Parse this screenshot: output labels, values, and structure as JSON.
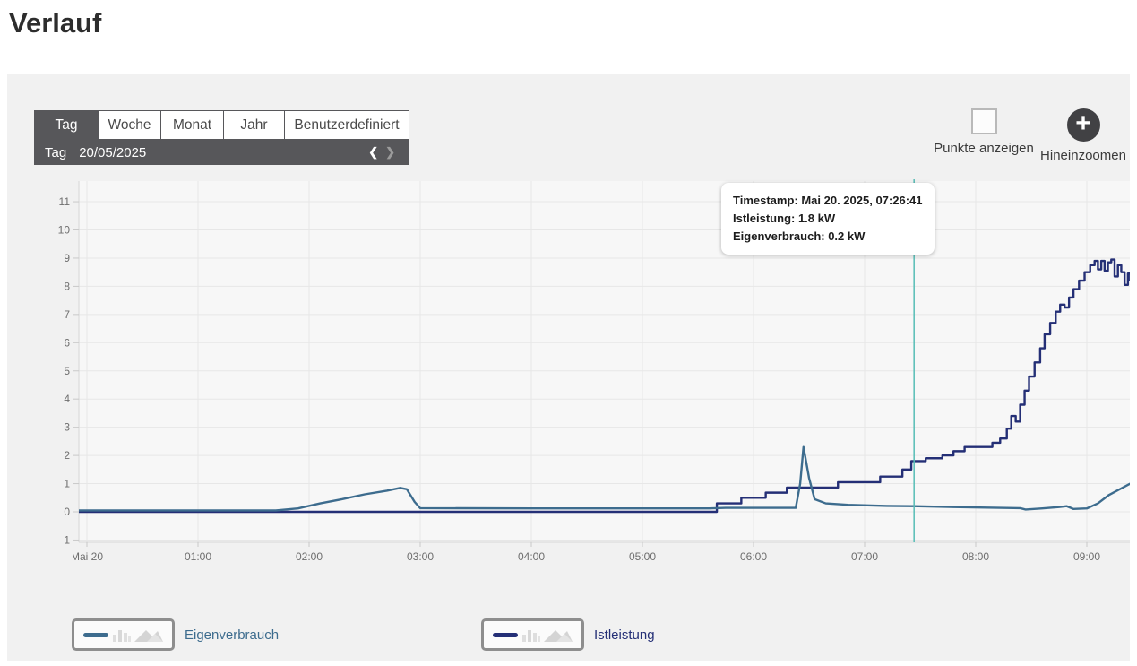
{
  "page": {
    "title": "Verlauf"
  },
  "toolbar": {
    "tabs": [
      {
        "label": "Tag",
        "active": true
      },
      {
        "label": "Woche",
        "active": false
      },
      {
        "label": "Monat",
        "active": false
      },
      {
        "label": "Jahr",
        "active": false
      },
      {
        "label": "Benutzerdefiniert",
        "active": false
      }
    ],
    "date_bar": {
      "mode_label": "Tag",
      "date": "20/05/2025",
      "prev_icon": "❮",
      "next_icon": "❯"
    }
  },
  "controls": {
    "show_points_label": "Punkte anzeigen",
    "zoom_in_label": "Hineinzoomen",
    "zoom_icon": "+",
    "checkbox_checked": false
  },
  "tooltip": {
    "lines": [
      "Timestamp: Mai 20. 2025, 07:26:41",
      "Istleistung: 1.8 kW",
      "Eigenverbrauch: 0.2 kW"
    ]
  },
  "legend": [
    {
      "label": "Eigenverbrauch",
      "color": "#3d6c8e"
    },
    {
      "label": "Istleistung",
      "color": "#242f76"
    }
  ],
  "colors": {
    "ui_dark_gray": "#57575a",
    "panel_bg": "#f1f1f1",
    "plot_bg": "#f7f7f7",
    "grid": "#e7e7e7",
    "axis": "#d6d6d6",
    "crosshair": "#56bdb6"
  },
  "chart_data": {
    "type": "line",
    "title": "",
    "xlabel": "",
    "ylabel": "",
    "x_unit": "hours since 00:00 of Mai 20 2025",
    "xlim": [
      -0.073,
      9.39
    ],
    "ylim": [
      -1.1,
      11.7
    ],
    "grid": true,
    "legend_position": "bottom",
    "y_ticks": [
      -1,
      0,
      1,
      2,
      3,
      4,
      5,
      6,
      7,
      8,
      9,
      10,
      11
    ],
    "x_ticks": [
      {
        "x": 0,
        "label": "Mai 20"
      },
      {
        "x": 1,
        "label": "01:00"
      },
      {
        "x": 2,
        "label": "02:00"
      },
      {
        "x": 3,
        "label": "03:00"
      },
      {
        "x": 4,
        "label": "04:00"
      },
      {
        "x": 5,
        "label": "05:00"
      },
      {
        "x": 6,
        "label": "06:00"
      },
      {
        "x": 7,
        "label": "07:00"
      },
      {
        "x": 8,
        "label": "08:00"
      },
      {
        "x": 9,
        "label": "09:00"
      }
    ],
    "crosshair": {
      "x": 7.445,
      "color": "#56bdb6"
    },
    "series": [
      {
        "name": "Istleistung",
        "color": "#242f76",
        "unit": "kW",
        "step": true,
        "points": [
          [
            -0.073,
            0
          ],
          [
            5.5,
            0
          ],
          [
            5.67,
            0.3
          ],
          [
            5.89,
            0.5
          ],
          [
            6.11,
            0.68
          ],
          [
            6.3,
            0.86
          ],
          [
            6.76,
            1.05
          ],
          [
            7.14,
            1.25
          ],
          [
            7.34,
            1.5
          ],
          [
            7.42,
            1.8
          ],
          [
            7.55,
            1.9
          ],
          [
            7.7,
            2.0
          ],
          [
            7.8,
            2.15
          ],
          [
            7.9,
            2.3
          ],
          [
            8.15,
            2.45
          ],
          [
            8.22,
            2.6
          ],
          [
            8.28,
            2.95
          ],
          [
            8.32,
            3.4
          ],
          [
            8.36,
            3.2
          ],
          [
            8.4,
            3.8
          ],
          [
            8.44,
            4.3
          ],
          [
            8.48,
            4.8
          ],
          [
            8.53,
            5.3
          ],
          [
            8.58,
            5.8
          ],
          [
            8.62,
            6.3
          ],
          [
            8.67,
            6.7
          ],
          [
            8.72,
            7.1
          ],
          [
            8.76,
            7.35
          ],
          [
            8.8,
            7.25
          ],
          [
            8.84,
            7.6
          ],
          [
            8.88,
            7.9
          ],
          [
            8.93,
            8.2
          ],
          [
            8.98,
            8.5
          ],
          [
            9.03,
            8.75
          ],
          [
            9.07,
            8.9
          ],
          [
            9.1,
            8.6
          ],
          [
            9.13,
            8.9
          ],
          [
            9.16,
            8.55
          ],
          [
            9.19,
            8.85
          ],
          [
            9.22,
            8.95
          ],
          [
            9.25,
            8.35
          ],
          [
            9.28,
            8.75
          ],
          [
            9.31,
            8.5
          ],
          [
            9.34,
            8.05
          ],
          [
            9.37,
            8.45
          ],
          [
            9.39,
            8.2
          ]
        ]
      },
      {
        "name": "Eigenverbrauch",
        "color": "#3d6c8e",
        "unit": "kW",
        "step": false,
        "points": [
          [
            -0.073,
            0.05
          ],
          [
            1.7,
            0.05
          ],
          [
            1.9,
            0.12
          ],
          [
            2.1,
            0.3
          ],
          [
            2.3,
            0.45
          ],
          [
            2.5,
            0.62
          ],
          [
            2.7,
            0.75
          ],
          [
            2.82,
            0.85
          ],
          [
            2.88,
            0.8
          ],
          [
            2.95,
            0.35
          ],
          [
            3.0,
            0.13
          ],
          [
            4.0,
            0.12
          ],
          [
            5.6,
            0.12
          ],
          [
            5.75,
            0.14
          ],
          [
            6.38,
            0.14
          ],
          [
            6.42,
            1.0
          ],
          [
            6.45,
            2.3
          ],
          [
            6.5,
            1.2
          ],
          [
            6.55,
            0.45
          ],
          [
            6.65,
            0.3
          ],
          [
            6.85,
            0.25
          ],
          [
            7.2,
            0.21
          ],
          [
            7.44,
            0.2
          ],
          [
            7.8,
            0.17
          ],
          [
            8.1,
            0.15
          ],
          [
            8.4,
            0.13
          ],
          [
            8.45,
            0.08
          ],
          [
            8.6,
            0.12
          ],
          [
            8.75,
            0.17
          ],
          [
            8.82,
            0.2
          ],
          [
            8.88,
            0.1
          ],
          [
            9.0,
            0.12
          ],
          [
            9.1,
            0.3
          ],
          [
            9.2,
            0.6
          ],
          [
            9.39,
            1.0
          ]
        ]
      }
    ]
  }
}
